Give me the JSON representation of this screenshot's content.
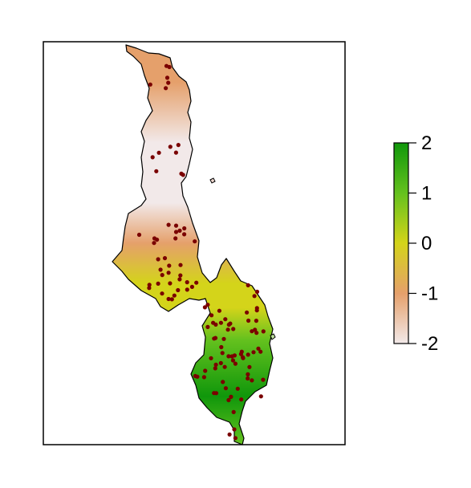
{
  "map": {
    "type": "raster-map",
    "region": "Malawi",
    "panel_border": true,
    "background": "#ffffff",
    "outline_color": "#000000",
    "point_color": "#7a0000",
    "point_count": 120
  },
  "legend": {
    "min": -2,
    "max": 2,
    "ticks": [
      {
        "value": 2,
        "label": "2"
      },
      {
        "value": 1,
        "label": "1"
      },
      {
        "value": 0,
        "label": "0"
      },
      {
        "value": -1,
        "label": "-1"
      },
      {
        "value": -2,
        "label": "-2"
      }
    ],
    "color_stops": [
      {
        "value": -2,
        "color": "#f2e9e9"
      },
      {
        "value": -1,
        "color": "#e5a06b"
      },
      {
        "value": 0,
        "color": "#d4d41a"
      },
      {
        "value": 1,
        "color": "#64c11e"
      },
      {
        "value": 2,
        "color": "#10970b"
      }
    ]
  }
}
